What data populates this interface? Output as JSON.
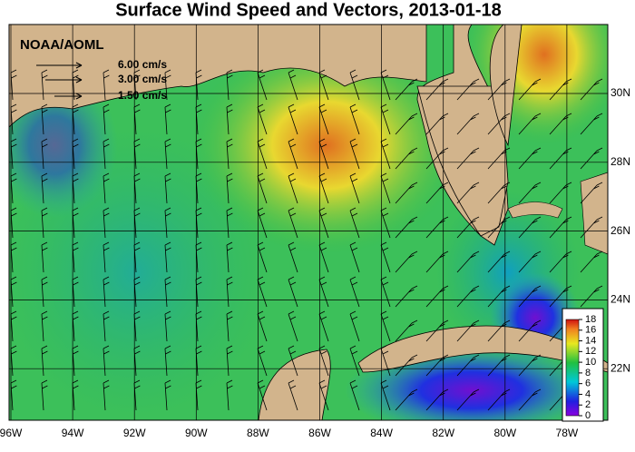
{
  "title": "Surface Wind Speed and Vectors, 2013-01-18",
  "source": "NOAA/AOML",
  "legend": [
    "6.00 cm/s",
    "3.00 cm/s",
    "1.50 cm/s"
  ],
  "lon_labels": [
    "96W",
    "94W",
    "92W",
    "90W",
    "88W",
    "86W",
    "84W",
    "82W",
    "80W",
    "78W"
  ],
  "lat_labels": [
    "30N",
    "28N",
    "26N",
    "24N",
    "22N"
  ],
  "colorbar": {
    "ticks": [
      0,
      2,
      4,
      6,
      8,
      10,
      12,
      14,
      16,
      18
    ]
  }
}
